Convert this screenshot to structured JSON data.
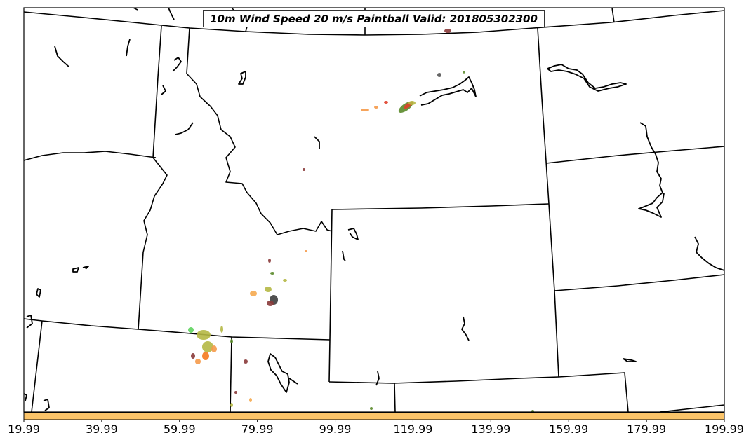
{
  "title": "10m Wind Speed 20 m/s Paintball Valid: 201805302300",
  "colorbar": {
    "color": "#fbc469",
    "ticks": [
      "19.99",
      "39.99",
      "59.99",
      "79.99",
      "99.99",
      "119.99",
      "139.99",
      "159.99",
      "179.99",
      "199.99"
    ]
  },
  "colors": {
    "border": "#000000",
    "frame": "#000000",
    "paint_green": "#5a8a2a",
    "paint_olive": "#b5b845",
    "paint_orange": "#f59a4a",
    "paint_red": "#e0402a",
    "paint_maroon": "#8a3a3a",
    "paint_lime": "#5fd45f"
  }
}
